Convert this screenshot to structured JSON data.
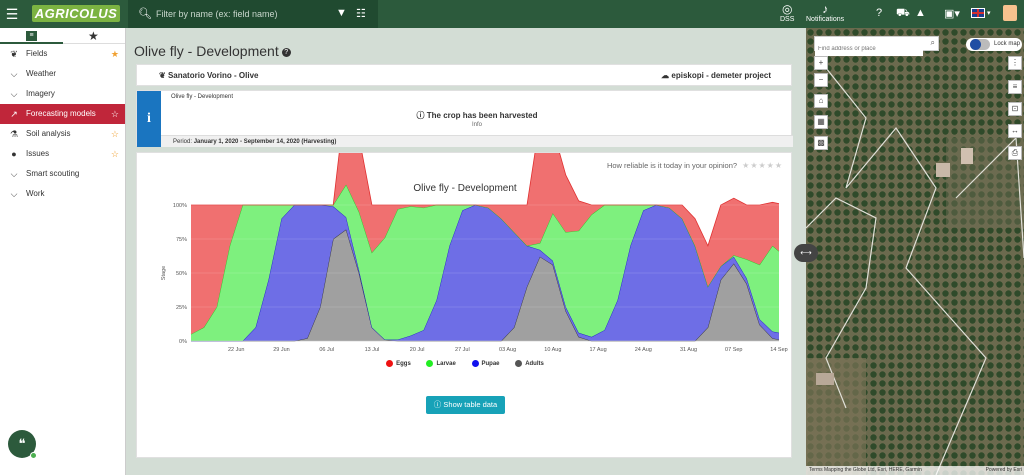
{
  "app": {
    "logo_text": "AGRICOLUS"
  },
  "topbar": {
    "search_placeholder": "Filter by name (ex: field name)",
    "dss_label": "DSS",
    "notifications_label": "Notifications"
  },
  "sidebar": {
    "items": [
      {
        "label": "Fields",
        "icon": "leaf-icon",
        "favorite": true
      },
      {
        "label": "Weather",
        "icon": "chevron-down-icon",
        "favorite": false
      },
      {
        "label": "Imagery",
        "icon": "chevron-down-icon",
        "favorite": false
      },
      {
        "label": "Forecasting models",
        "icon": "chart-line-icon",
        "favorite": true,
        "active": true
      },
      {
        "label": "Soil analysis",
        "icon": "flask-icon",
        "favorite": true
      },
      {
        "label": "Issues",
        "icon": "alert-icon",
        "favorite": true
      },
      {
        "label": "Smart scouting",
        "icon": "chevron-down-icon",
        "favorite": false
      },
      {
        "label": "Work",
        "icon": "chevron-down-icon",
        "favorite": false
      }
    ]
  },
  "page": {
    "title": "Olive fly - Development",
    "field_name": "Sanatorio Vorino - Olive",
    "project_name": "episkopi - demeter project"
  },
  "info": {
    "model_name": "Olive fly - Development",
    "message": "The crop has been harvested",
    "sub": "Info",
    "period_label": "Period:",
    "period_value": "January 1, 2020 - September 14, 2020 (Harvesting)"
  },
  "rating": {
    "question": "How reliable is it today in your opinion?"
  },
  "chart_data": {
    "type": "area",
    "title": "Olive fly - Development",
    "ylabel": "Stage",
    "xlabel": "",
    "ylim": [
      0,
      100
    ],
    "y_ticks": [
      "0%",
      "25%",
      "50%",
      "75%",
      "100%"
    ],
    "x_ticks": [
      "22 Jun",
      "29 Jun",
      "06 Jul",
      "13 Jul",
      "20 Jul",
      "27 Jul",
      "03 Aug",
      "10 Aug",
      "17 Aug",
      "24 Aug",
      "31 Aug",
      "07 Sep",
      "14 Sep"
    ],
    "x_tick_days": [
      7,
      14,
      21,
      28,
      35,
      42,
      49,
      56,
      63,
      70,
      77,
      84,
      91
    ],
    "x_days": [
      0,
      2,
      4,
      6,
      8,
      10,
      12,
      14,
      16,
      18,
      20,
      22,
      24,
      26,
      28,
      30,
      32,
      34,
      36,
      38,
      40,
      42,
      44,
      46,
      48,
      50,
      52,
      54,
      56,
      58,
      60,
      62,
      64,
      66,
      68,
      70,
      72,
      74,
      76,
      78,
      80,
      82,
      84,
      86,
      88,
      90,
      91
    ],
    "series": [
      {
        "name": "Adults",
        "color": "#a0a0a0",
        "values": [
          0,
          0,
          0,
          0,
          0,
          0,
          0,
          0,
          0,
          2,
          25,
          75,
          82,
          50,
          10,
          1,
          0,
          0,
          0,
          0,
          0,
          0,
          0,
          0,
          0,
          10,
          40,
          62,
          56,
          22,
          3,
          0,
          0,
          0,
          0,
          0,
          0,
          0,
          0,
          0,
          10,
          45,
          57,
          42,
          12,
          2,
          1
        ]
      },
      {
        "name": "Pupae",
        "color": "#6e6ee6",
        "values": [
          0,
          0,
          0,
          0,
          0,
          10,
          45,
          90,
          100,
          98,
          75,
          24,
          9,
          2,
          0,
          0,
          1,
          4,
          8,
          30,
          70,
          96,
          100,
          98,
          90,
          70,
          30,
          5,
          3,
          3,
          3,
          3,
          8,
          30,
          70,
          96,
          100,
          98,
          90,
          70,
          30,
          10,
          5,
          4,
          4,
          5,
          5
        ]
      },
      {
        "name": "Larvae",
        "color": "#7ef07e",
        "values": [
          5,
          10,
          25,
          70,
          100,
          90,
          55,
          10,
          0,
          0,
          0,
          1,
          24,
          43,
          55,
          75,
          96,
          95,
          90,
          70,
          30,
          4,
          0,
          0,
          0,
          0,
          0,
          5,
          35,
          55,
          75,
          90,
          92,
          70,
          30,
          4,
          0,
          0,
          0,
          0,
          0,
          0,
          1,
          14,
          40,
          63,
          60
        ]
      },
      {
        "name": "Eggs",
        "color": "#f07070",
        "values": [
          95,
          90,
          75,
          30,
          0,
          0,
          0,
          0,
          0,
          0,
          0,
          0,
          67,
          55,
          35,
          24,
          3,
          1,
          2,
          0,
          0,
          0,
          0,
          2,
          10,
          20,
          30,
          90,
          62,
          42,
          22,
          7,
          0,
          0,
          0,
          0,
          0,
          2,
          10,
          20,
          30,
          45,
          42,
          40,
          44,
          32,
          35
        ]
      }
    ]
  },
  "legend": [
    {
      "label": "Eggs",
      "color": "#ee1111"
    },
    {
      "label": "Larvae",
      "color": "#22ee22"
    },
    {
      "label": "Pupae",
      "color": "#1111ee"
    },
    {
      "label": "Adults",
      "color": "#555555"
    }
  ],
  "table_button": {
    "label": "Show table data"
  },
  "map": {
    "search_placeholder": "Find address or place",
    "lock_label": "Lock map",
    "attribution": "Terms Mapping the Globe Ltd, Esri, HERE, Garmin",
    "powered_by": "Powered by Esri"
  },
  "colors": {
    "topbar": "#2c5a3c",
    "active_item": "#c0263a",
    "info_stripe": "#1a75c0",
    "button": "#17a2b8"
  }
}
